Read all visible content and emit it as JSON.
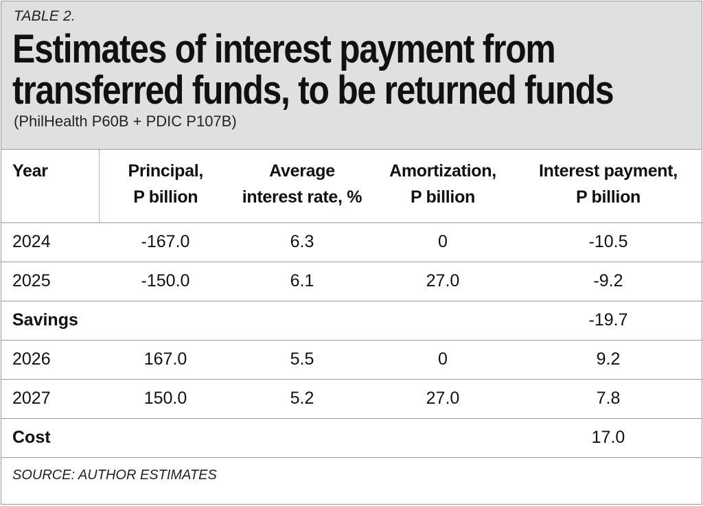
{
  "table_label": "TABLE 2.",
  "title_line1": "Estimates of interest payment from",
  "title_line2": "transferred funds, to be returned funds",
  "subtitle": "(PhilHealth P60B + PDIC P107B)",
  "columns": [
    {
      "line1": "Year",
      "line2": ""
    },
    {
      "line1": "Principal,",
      "line2": "P billion"
    },
    {
      "line1": "Average",
      "line2": "interest rate, %"
    },
    {
      "line1": "Amortization,",
      "line2": "P billion"
    },
    {
      "line1": "Interest payment,",
      "line2": "P billion"
    }
  ],
  "rows": [
    {
      "year": "2024",
      "principal": "-167.0",
      "rate": "6.3",
      "amortization": "0",
      "interest": "-10.5"
    },
    {
      "year": "2025",
      "principal": "-150.0",
      "rate": "6.1",
      "amortization": "27.0",
      "interest": "-9.2"
    },
    {
      "year": "Savings",
      "principal": "",
      "rate": "",
      "amortization": "",
      "interest": "-19.7"
    },
    {
      "year": "2026",
      "principal": "167.0",
      "rate": "5.5",
      "amortization": "0",
      "interest": "9.2"
    },
    {
      "year": "2027",
      "principal": "150.0",
      "rate": "5.2",
      "amortization": "27.0",
      "interest": "7.8"
    },
    {
      "year": "Cost",
      "principal": "",
      "rate": "",
      "amortization": "",
      "interest": "17.0"
    }
  ],
  "source": "SOURCE: AUTHOR ESTIMATES"
}
